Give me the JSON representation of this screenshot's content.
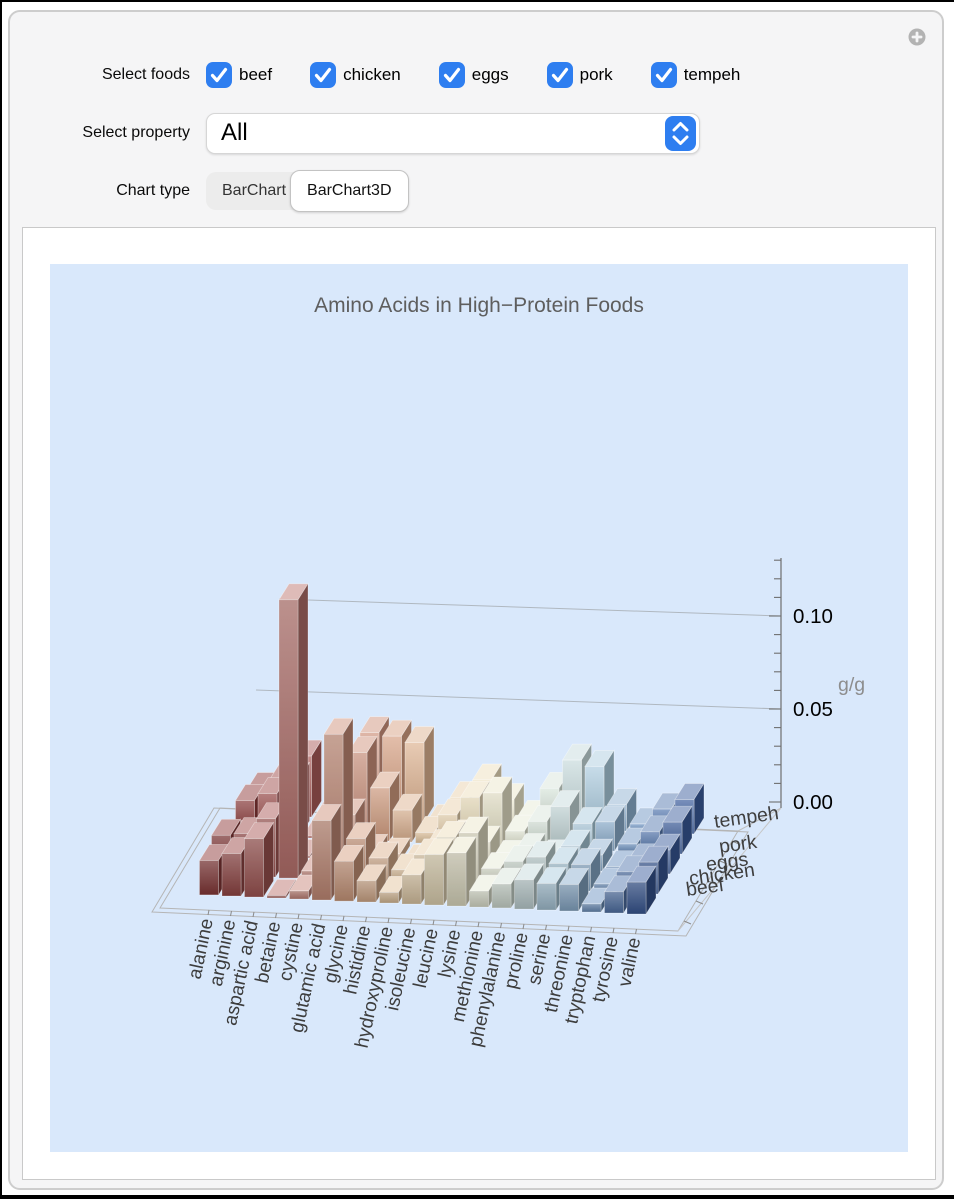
{
  "controls": {
    "foods_label": "Select foods",
    "foods": [
      {
        "label": "beef",
        "checked": true
      },
      {
        "label": "chicken",
        "checked": true
      },
      {
        "label": "eggs",
        "checked": true
      },
      {
        "label": "pork",
        "checked": true
      },
      {
        "label": "tempeh",
        "checked": true
      }
    ],
    "property_label": "Select property",
    "property_value": "All",
    "chart_type_label": "Chart type",
    "chart_types": [
      {
        "label": "BarChart",
        "selected": false
      },
      {
        "label": "BarChart3D",
        "selected": true
      }
    ],
    "accent_color": "#2e7ef0"
  },
  "chart_data": {
    "type": "bar",
    "subtype": "bar3d",
    "title": "Amino Acids in High−Protein Foods",
    "background": "#d9e8fb",
    "grid": true,
    "legend_position": "none",
    "z_axis": {
      "label": "g/g",
      "ticks": [
        "0.00",
        "0.05",
        "0.10"
      ],
      "tick_values": [
        0,
        0.05,
        0.1
      ],
      "zlim": [
        0,
        0.13
      ]
    },
    "categories": [
      "alanine",
      "arginine",
      "aspartic acid",
      "betaine",
      "cystine",
      "glutamic acid",
      "glycine",
      "histidine",
      "hydroxyproline",
      "isoleucine",
      "leucine",
      "lysine",
      "methionine",
      "phenylalanine",
      "proline",
      "serine",
      "threonine",
      "tryptophan",
      "tyrosine",
      "valine"
    ],
    "series": [
      {
        "name": "beef",
        "values": [
          0.013,
          0.016,
          0.022,
          0.001,
          0.003,
          0.03,
          0.015,
          0.008,
          0.004,
          0.011,
          0.019,
          0.02,
          0.006,
          0.009,
          0.011,
          0.01,
          0.01,
          0.003,
          0.008,
          0.012
        ]
      },
      {
        "name": "chicken",
        "values": [
          0.015,
          0.016,
          0.022,
          0.105,
          0.003,
          0.055,
          0.016,
          0.009,
          0.005,
          0.011,
          0.018,
          0.02,
          0.007,
          0.01,
          0.012,
          0.01,
          0.01,
          0.003,
          0.008,
          0.012
        ]
      },
      {
        "name": "eggs",
        "values": [
          0.007,
          0.008,
          0.013,
          0.001,
          0.003,
          0.017,
          0.004,
          0.003,
          0.001,
          0.007,
          0.011,
          0.009,
          0.004,
          0.007,
          0.005,
          0.009,
          0.006,
          0.002,
          0.005,
          0.009
        ]
      },
      {
        "name": "pork",
        "values": [
          0.013,
          0.016,
          0.022,
          0.001,
          0.003,
          0.033,
          0.02,
          0.012,
          0.004,
          0.011,
          0.018,
          0.02,
          0.006,
          0.01,
          0.016,
          0.01,
          0.011,
          0.003,
          0.008,
          0.012
        ]
      },
      {
        "name": "tempeh",
        "values": [
          0.01,
          0.014,
          0.023,
          0.001,
          0.003,
          0.033,
          0.032,
          0.03,
          0.001,
          0.01,
          0.017,
          0.01,
          0.004,
          0.015,
          0.026,
          0.024,
          0.01,
          0.003,
          0.009,
          0.013
        ]
      }
    ],
    "colors": {
      "ramp_stops": [
        [
          0.0,
          "#8e3b3b"
        ],
        [
          0.1,
          "#a85856"
        ],
        [
          0.18,
          "#c5827b"
        ],
        [
          0.3,
          "#d49a7e"
        ],
        [
          0.42,
          "#e3c49e"
        ],
        [
          0.52,
          "#ecddba"
        ],
        [
          0.62,
          "#e9ecd6"
        ],
        [
          0.72,
          "#cfdfdc"
        ],
        [
          0.8,
          "#a7c9de"
        ],
        [
          0.9,
          "#6b91c0"
        ],
        [
          1.0,
          "#3a5c9c"
        ]
      ],
      "title_color": "#5e5e5e",
      "axis_text": "#000000",
      "muted_text": "#8d8d8d",
      "label_text": "#3d3d3d"
    }
  }
}
